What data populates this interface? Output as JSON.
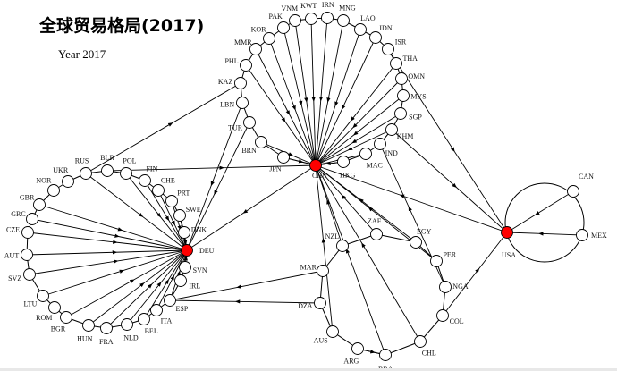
{
  "title": "全球贸易格局(2017)",
  "subtitle": "Year 2017",
  "colors": {
    "hub": "#ff0000",
    "node": "#ffffff",
    "edge": "#000000"
  },
  "hubs": [
    "CHN",
    "DEU",
    "USA"
  ],
  "rings": {
    "asia": [
      "CHN",
      "JPN",
      "BRN",
      "TUR",
      "LBN",
      "KAZ",
      "PHL",
      "MMR",
      "KOR",
      "PAK",
      "VNM",
      "KWT",
      "IRN",
      "MNG",
      "LAO",
      "IDN",
      "ISR",
      "THA",
      "OMN",
      "MYS",
      "SGP",
      "KHM",
      "IND",
      "MAC",
      "HKG",
      "CHN"
    ],
    "europe": [
      "RUS",
      "BLR",
      "POL",
      "FIN",
      "CHE",
      "PRT",
      "SWE",
      "DNK",
      "DEU",
      "SVN",
      "IRL",
      "ESP",
      "ITA",
      "BEL",
      "NLD",
      "FRA",
      "HUN",
      "BGR",
      "ROM",
      "LTU",
      "SVZ",
      "AUT",
      "CZE",
      "GRC",
      "GBR",
      "NOR",
      "UKR",
      "RUS"
    ],
    "south": [
      "NZL",
      "ZAF",
      "EGY",
      "PER",
      "NGA",
      "COL",
      "CHL",
      "BRA",
      "ARG",
      "AUS",
      "DZA",
      "MAR",
      "NZL"
    ]
  },
  "edges": [
    [
      "JPN",
      "CHN"
    ],
    [
      "BRN",
      "CHN"
    ],
    [
      "PHL",
      "CHN"
    ],
    [
      "MMR",
      "CHN"
    ],
    [
      "KOR",
      "CHN"
    ],
    [
      "PAK",
      "CHN"
    ],
    [
      "VNM",
      "CHN"
    ],
    [
      "KWT",
      "CHN"
    ],
    [
      "IRN",
      "CHN"
    ],
    [
      "MNG",
      "CHN"
    ],
    [
      "LAO",
      "CHN"
    ],
    [
      "IDN",
      "CHN"
    ],
    [
      "THA",
      "CHN"
    ],
    [
      "OMN",
      "CHN"
    ],
    [
      "MYS",
      "CHN"
    ],
    [
      "SGP",
      "CHN"
    ],
    [
      "KHM",
      "CHN"
    ],
    [
      "MAC",
      "CHN"
    ],
    [
      "HKG",
      "CHN"
    ],
    [
      "RUS",
      "DEU"
    ],
    [
      "POL",
      "DEU"
    ],
    [
      "FIN",
      "DEU"
    ],
    [
      "CHE",
      "DEU"
    ],
    [
      "PRT",
      "DEU"
    ],
    [
      "SWE",
      "DEU"
    ],
    [
      "DNK",
      "DEU"
    ],
    [
      "SVN",
      "DEU"
    ],
    [
      "IRL",
      "DEU"
    ],
    [
      "ESP",
      "DEU"
    ],
    [
      "ITA",
      "DEU"
    ],
    [
      "BEL",
      "DEU"
    ],
    [
      "NLD",
      "DEU"
    ],
    [
      "FRA",
      "DEU"
    ],
    [
      "HUN",
      "DEU"
    ],
    [
      "BGR",
      "DEU"
    ],
    [
      "LTU",
      "DEU"
    ],
    [
      "SVZ",
      "DEU"
    ],
    [
      "AUT",
      "DEU"
    ],
    [
      "CZE",
      "DEU"
    ],
    [
      "GRC",
      "DEU"
    ],
    [
      "GBR",
      "DEU"
    ],
    [
      "CHN",
      "DEU"
    ],
    [
      "TUR",
      "DEU"
    ],
    [
      "LBN",
      "DEU"
    ],
    [
      "RUS",
      "KAZ"
    ],
    [
      "BLR",
      "CHN"
    ],
    [
      "USA",
      "CHN"
    ],
    [
      "CAN",
      "USA"
    ],
    [
      "MEX",
      "USA"
    ],
    [
      "COL",
      "USA"
    ],
    [
      "ISR",
      "USA"
    ],
    [
      "KHM",
      "USA"
    ],
    [
      "NGA",
      "IND"
    ],
    [
      "ZAF",
      "CHN"
    ],
    [
      "EGY",
      "CHN"
    ],
    [
      "PER",
      "CHN"
    ],
    [
      "NZL",
      "CHN"
    ],
    [
      "AUS",
      "CHN"
    ],
    [
      "BRA",
      "CHN"
    ],
    [
      "CHL",
      "CHN"
    ],
    [
      "ARG",
      "BRA"
    ],
    [
      "MAR",
      "ESP"
    ],
    [
      "DZA",
      "ESP"
    ]
  ],
  "nodes": [
    "CHN",
    "DEU",
    "USA",
    "CAN",
    "MEX",
    "JPN",
    "BRN",
    "TUR",
    "LBN",
    "KAZ",
    "PHL",
    "MMR",
    "KOR",
    "PAK",
    "VNM",
    "KWT",
    "IRN",
    "MNG",
    "LAO",
    "IDN",
    "ISR",
    "THA",
    "OMN",
    "MYS",
    "SGP",
    "KHM",
    "IND",
    "MAC",
    "HKG",
    "RUS",
    "BLR",
    "POL",
    "FIN",
    "CHE",
    "PRT",
    "SWE",
    "DNK",
    "SVN",
    "IRL",
    "ESP",
    "ITA",
    "BEL",
    "NLD",
    "FRA",
    "HUN",
    "BGR",
    "ROM",
    "LTU",
    "SVZ",
    "AUT",
    "CZE",
    "GRC",
    "GBR",
    "NOR",
    "UKR",
    "NZL",
    "ZAF",
    "EGY",
    "PER",
    "NGA",
    "COL",
    "CHL",
    "BRA",
    "ARG",
    "AUS",
    "DZA",
    "MAR"
  ]
}
